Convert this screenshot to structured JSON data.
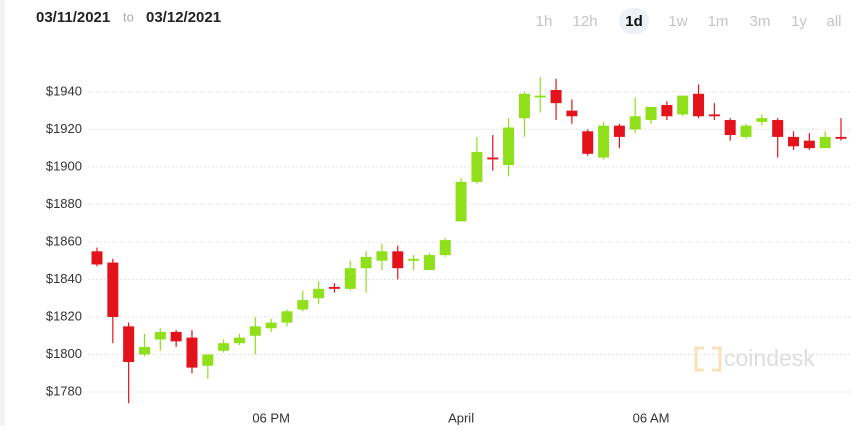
{
  "header": {
    "from_date": "03/11/2021",
    "to_word": "to",
    "to_date": "03/12/2021",
    "ranges": [
      "1h",
      "12h",
      "1d",
      "1w",
      "1m",
      "3m",
      "1y",
      "all"
    ]
  },
  "watermark": "coindesk",
  "chart_data": {
    "type": "candlestick",
    "categories": [
      null,
      null,
      null,
      null,
      null,
      null,
      null,
      null,
      null,
      null,
      null,
      "06 PM",
      null,
      null,
      null,
      null,
      null,
      null,
      null,
      null,
      null,
      null,
      null,
      "April",
      null,
      null,
      null,
      null,
      null,
      null,
      null,
      null,
      null,
      null,
      null,
      "06 AM",
      null,
      null,
      null,
      null,
      null,
      null,
      null,
      null,
      null,
      null,
      null,
      null
    ],
    "open": [
      1855,
      1849,
      1815,
      1800,
      1808,
      1812,
      1809,
      1794,
      1802,
      1806,
      1810,
      1814,
      1817,
      1824,
      1830,
      1836,
      1835,
      1846,
      1850,
      1855,
      1850,
      1845,
      1853,
      1871,
      1892,
      1905,
      1901,
      1926,
      1937,
      1941,
      1930,
      1919,
      1905,
      1922,
      1920,
      1925,
      1933,
      1928,
      1939,
      1928,
      1925,
      1916,
      1924,
      1925,
      1916,
      1914,
      1910,
      1916
    ],
    "high": [
      1857,
      1851,
      1817,
      1811,
      1814,
      1813,
      1813,
      1800,
      1808,
      1811,
      1820,
      1819,
      1824,
      1834,
      1839,
      1838,
      1850,
      1855,
      1859,
      1858,
      1853,
      1854,
      1862,
      1894,
      1916,
      1917,
      1926,
      1940,
      1948,
      1947,
      1936,
      1920,
      1924,
      1923,
      1937,
      1932,
      1935,
      1938,
      1944,
      1934,
      1926,
      1923,
      1928,
      1926,
      1919,
      1918,
      1919,
      1926
    ],
    "low": [
      1847,
      1806,
      1774,
      1799,
      1802,
      1804,
      1790,
      1787,
      1801,
      1805,
      1800,
      1812,
      1815,
      1823,
      1827,
      1833,
      1834,
      1833,
      1845,
      1840,
      1845,
      1845,
      1852,
      1871,
      1891,
      1898,
      1895,
      1916,
      1929,
      1925,
      1923,
      1906,
      1904,
      1910,
      1918,
      1923,
      1925,
      1927,
      1926,
      1925,
      1914,
      1915,
      1922,
      1905,
      1909,
      1909,
      1910,
      1914
    ],
    "close": [
      1848,
      1820,
      1796,
      1804,
      1812,
      1807,
      1793,
      1800,
      1806,
      1809,
      1815,
      1817,
      1823,
      1829,
      1835,
      1835,
      1846,
      1852,
      1855,
      1846,
      1851,
      1853,
      1861,
      1892,
      1908,
      1904,
      1921,
      1939,
      1938,
      1934,
      1927,
      1907,
      1922,
      1916,
      1927,
      1932,
      1927,
      1938,
      1927,
      1927,
      1917,
      1922,
      1926,
      1916,
      1911,
      1910,
      1916,
      1915
    ],
    "up_color": "#8fe01a",
    "down_color": "#e3131b",
    "ylim": [
      1772,
      1957
    ],
    "yticks": [
      {
        "value": 1780,
        "label": "$1780"
      },
      {
        "value": 1800,
        "label": "$1800"
      },
      {
        "value": 1820,
        "label": "$1820"
      },
      {
        "value": 1840,
        "label": "$1840"
      },
      {
        "value": 1860,
        "label": "$1860"
      },
      {
        "value": 1880,
        "label": "$1880"
      },
      {
        "value": 1900,
        "label": "$1900"
      },
      {
        "value": 1920,
        "label": "$1920"
      },
      {
        "value": 1940,
        "label": "$1940"
      }
    ],
    "grid": true
  }
}
